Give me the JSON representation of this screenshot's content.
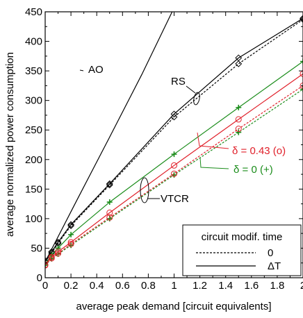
{
  "chart_data": {
    "type": "line",
    "xlabel": "average peak demand [circuit equivalents]",
    "ylabel": "average normalized power consumption",
    "xlim": [
      0,
      2
    ],
    "ylim": [
      0,
      450
    ],
    "x_ticks": [
      0,
      0.2,
      0.4,
      0.6,
      0.8,
      1,
      1.2,
      1.4,
      1.6,
      1.8,
      2
    ],
    "x_tick_labels": [
      "0",
      "0.2",
      "0.4",
      "0.6",
      "0.8",
      "1",
      "1.2",
      "1.4",
      "1.6",
      "1.8",
      "2"
    ],
    "y_ticks": [
      0,
      50,
      100,
      150,
      200,
      250,
      300,
      350,
      400,
      450
    ],
    "y_tick_labels": [
      "0",
      "50",
      "100",
      "150",
      "200",
      "250",
      "300",
      "350",
      "400",
      "450"
    ],
    "grid": false,
    "series": [
      {
        "name": "",
        "scheme": "AO",
        "variant": "ΔT",
        "color": "#000000",
        "linestyle": "solid",
        "marker": "none",
        "x": [
          0,
          0.25,
          0.5,
          0.75,
          0.985
        ],
        "y": [
          27,
          133,
          238,
          344,
          450
        ]
      },
      {
        "name": "",
        "scheme": "RS",
        "variant": "0",
        "color": "#000000",
        "linestyle": "dashed",
        "marker": "diamond",
        "x": [
          0,
          0.05,
          0.1,
          0.2,
          0.5,
          1,
          1.5,
          2
        ],
        "y": [
          27,
          42,
          58,
          88,
          157,
          272,
          362,
          437
        ]
      },
      {
        "name": "",
        "scheme": "RS",
        "variant": "ΔT",
        "color": "#000000",
        "linestyle": "solid",
        "marker": "diamond",
        "x": [
          0,
          0.05,
          0.1,
          0.2,
          0.5,
          1,
          1.5,
          2
        ],
        "y": [
          29,
          44,
          60,
          90,
          159,
          277,
          372,
          439
        ]
      },
      {
        "name": "",
        "scheme": "VTCR",
        "variant": "ΔT",
        "delta": "0 (+)",
        "color": "#1a8c1a",
        "linestyle": "solid",
        "marker": "plus",
        "x": [
          0,
          0.05,
          0.1,
          0.2,
          0.5,
          1,
          1.5,
          2
        ],
        "y": [
          23,
          38,
          50,
          73,
          128,
          209,
          288,
          366
        ]
      },
      {
        "name": "",
        "scheme": "VTCR",
        "variant": "0",
        "delta": "0 (+)",
        "color": "#1a8c1a",
        "linestyle": "dashed",
        "marker": "plus",
        "x": [
          0,
          0.05,
          0.1,
          0.2,
          0.5,
          1,
          1.5,
          2
        ],
        "y": [
          21,
          32,
          40,
          55,
          100,
          174,
          246,
          319
        ]
      },
      {
        "name": "",
        "scheme": "VTCR",
        "variant": "ΔT",
        "delta": "0.43 (o)",
        "color": "#e0202a",
        "linestyle": "solid",
        "marker": "circle",
        "x": [
          0,
          0.05,
          0.1,
          0.2,
          0.5,
          1,
          1.5,
          2
        ],
        "y": [
          22,
          35,
          44,
          60,
          110,
          190,
          268,
          345
        ]
      },
      {
        "name": "",
        "scheme": "VTCR",
        "variant": "0",
        "delta": "0.43 (o)",
        "color": "#e0202a",
        "linestyle": "dashed",
        "marker": "circle",
        "x": [
          0,
          0.05,
          0.1,
          0.2,
          0.5,
          1,
          1.5,
          2
        ],
        "y": [
          21,
          33,
          41,
          57,
          102,
          176,
          252,
          325
        ]
      }
    ],
    "annotations": [
      {
        "id": "ao",
        "text": "AO",
        "color": "#000000"
      },
      {
        "id": "rs",
        "text": "RS",
        "color": "#000000"
      },
      {
        "id": "vtcr",
        "text": "VTCR",
        "color": "#000000"
      },
      {
        "id": "delta-red",
        "text": "δ = 0.43 (o)",
        "color": "#e0202a"
      },
      {
        "id": "delta-green",
        "text": "δ = 0 (+)",
        "color": "#1a8c1a"
      }
    ],
    "legend": {
      "position": "bottom-right",
      "title": "circuit modif. time",
      "entries": [
        {
          "label": "0",
          "linestyle": "dashed"
        },
        {
          "label": "ΔT",
          "linestyle": "solid"
        }
      ]
    }
  }
}
